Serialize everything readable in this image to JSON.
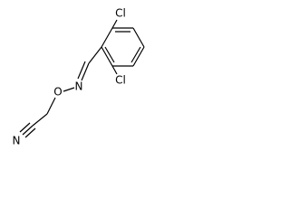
{
  "atoms": [
    "Cl",
    "Cl",
    "N",
    "O",
    "N"
  ]
}
